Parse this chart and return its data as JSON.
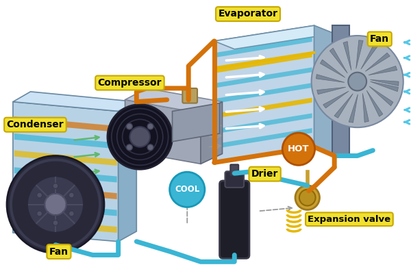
{
  "bg_color": "#ffffff",
  "label_bg": "#f0e030",
  "label_border": "#c8a800",
  "orange": "#d4720a",
  "blue": "#3ab5d4",
  "yellow": "#e6b800",
  "gray_dash": "#aaaaaa",
  "green_arrow": "#60b870",
  "blue_arrow": "#55c8e8",
  "labels": {
    "evaporator": "Evaporator",
    "compressor": "Compressor",
    "condenser": "Condenser",
    "fan_right": "Fan",
    "fan_left": "Fan",
    "hot": "HOT",
    "cool": "COOL",
    "drier": "Drier",
    "expansion": "Expansion valve"
  }
}
